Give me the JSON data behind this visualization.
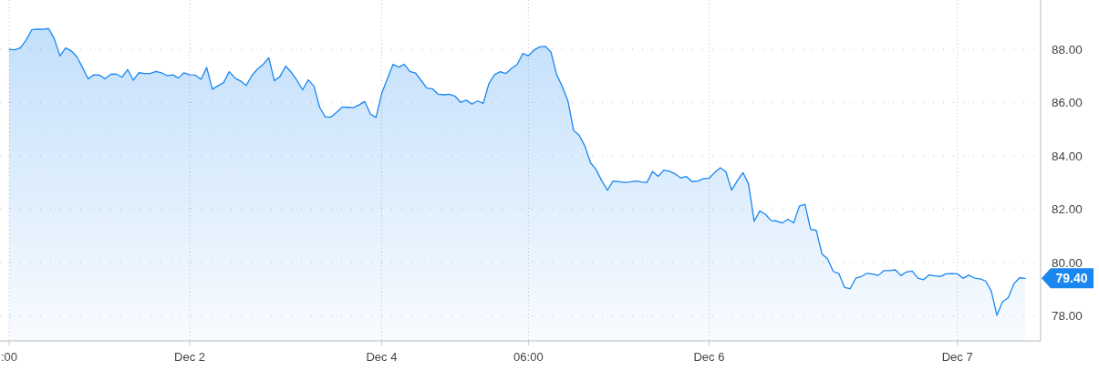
{
  "chart_data": {
    "type": "area",
    "categories": [
      ":00",
      null,
      null,
      null,
      null,
      null,
      null,
      null,
      null,
      null,
      null,
      null,
      null,
      null,
      null,
      null,
      null,
      null,
      null,
      null,
      null,
      null,
      null,
      null,
      null,
      null,
      null,
      null,
      null,
      null,
      null,
      null,
      "Dec 2",
      null,
      null,
      null,
      null,
      null,
      null,
      null,
      null,
      null,
      null,
      null,
      null,
      null,
      null,
      null,
      null,
      null,
      null,
      null,
      null,
      null,
      null,
      null,
      null,
      null,
      null,
      null,
      null,
      null,
      null,
      null,
      null,
      null,
      "Dec 4",
      null,
      null,
      null,
      null,
      null,
      null,
      null,
      null,
      null,
      null,
      null,
      null,
      null,
      null,
      null,
      null,
      null,
      null,
      null,
      null,
      null,
      null,
      null,
      null,
      null,
      "06:00",
      null,
      null,
      null,
      null,
      null,
      null,
      null,
      null,
      null,
      null,
      null,
      null,
      null,
      null,
      null,
      null,
      null,
      null,
      null,
      null,
      null,
      null,
      null,
      null,
      null,
      null,
      null,
      null,
      null,
      null,
      null,
      "Dec 6",
      null,
      null,
      null,
      null,
      null,
      null,
      null,
      null,
      null,
      null,
      null,
      null,
      null,
      null,
      null,
      null,
      null,
      null,
      null,
      null,
      null,
      null,
      null,
      null,
      null,
      null,
      null,
      null,
      null,
      null,
      null,
      null,
      null,
      null,
      null,
      null,
      null,
      null,
      null,
      null,
      null,
      null,
      null,
      "Dec 7",
      null,
      null,
      null,
      null,
      null,
      null,
      null,
      null,
      null,
      null,
      null,
      null
    ],
    "series": [
      {
        "color": "#1a86f0",
        "values": [
          88.0,
          87.98,
          88.06,
          88.34,
          88.73,
          88.76,
          88.75,
          88.78,
          88.4,
          87.75,
          88.05,
          87.94,
          87.72,
          87.32,
          86.89,
          87.04,
          87.03,
          86.89,
          87.06,
          87.07,
          86.95,
          87.24,
          86.84,
          87.12,
          87.09,
          87.09,
          87.17,
          87.12,
          87.01,
          87.04,
          86.92,
          87.12,
          87.04,
          87.03,
          86.87,
          87.32,
          86.5,
          86.63,
          86.75,
          87.16,
          86.92,
          86.81,
          86.64,
          87.01,
          87.26,
          87.43,
          87.68,
          86.82,
          86.98,
          87.37,
          87.13,
          86.83,
          86.48,
          86.85,
          86.62,
          85.83,
          85.46,
          85.45,
          85.63,
          85.83,
          85.82,
          85.81,
          85.91,
          86.04,
          85.57,
          85.44,
          86.34,
          86.88,
          87.43,
          87.33,
          87.43,
          87.17,
          87.11,
          86.83,
          86.54,
          86.52,
          86.31,
          86.29,
          86.31,
          86.24,
          86.01,
          86.09,
          85.94,
          86.06,
          85.97,
          86.71,
          87.05,
          87.16,
          87.09,
          87.28,
          87.43,
          87.84,
          87.76,
          87.97,
          88.09,
          88.11,
          87.89,
          87.05,
          86.6,
          86.06,
          84.96,
          84.77,
          84.37,
          83.74,
          83.48,
          83.06,
          82.71,
          83.05,
          83.03,
          83.0,
          83.02,
          83.05,
          83.02,
          83.0,
          83.41,
          83.23,
          83.46,
          83.42,
          83.32,
          83.17,
          83.22,
          83.03,
          83.05,
          83.14,
          83.16,
          83.37,
          83.55,
          83.4,
          82.71,
          83.06,
          83.37,
          82.94,
          81.54,
          81.93,
          81.8,
          81.57,
          81.55,
          81.48,
          81.62,
          81.48,
          82.11,
          82.18,
          81.24,
          81.2,
          80.32,
          80.13,
          79.66,
          79.58,
          79.06,
          79.01,
          79.41,
          79.47,
          79.59,
          79.56,
          79.51,
          79.69,
          79.69,
          79.72,
          79.5,
          79.64,
          79.67,
          79.41,
          79.35,
          79.53,
          79.49,
          79.47,
          79.57,
          79.58,
          79.57,
          79.4,
          79.52,
          79.41,
          79.38,
          79.3,
          78.93,
          78.01,
          78.52,
          78.67,
          79.19,
          79.42,
          79.4
        ]
      }
    ],
    "ylim": [
      77.05,
      89.85
    ],
    "yticks": [
      {
        "value": 78,
        "label": "78.00"
      },
      {
        "value": 80,
        "label": "80.00"
      },
      {
        "value": 82,
        "label": "82.00"
      },
      {
        "value": 84,
        "label": "84.00"
      },
      {
        "value": 86,
        "label": "86.00"
      },
      {
        "value": 88,
        "label": "88.00"
      }
    ],
    "grid": true,
    "annotations": [
      "79.40"
    ]
  }
}
